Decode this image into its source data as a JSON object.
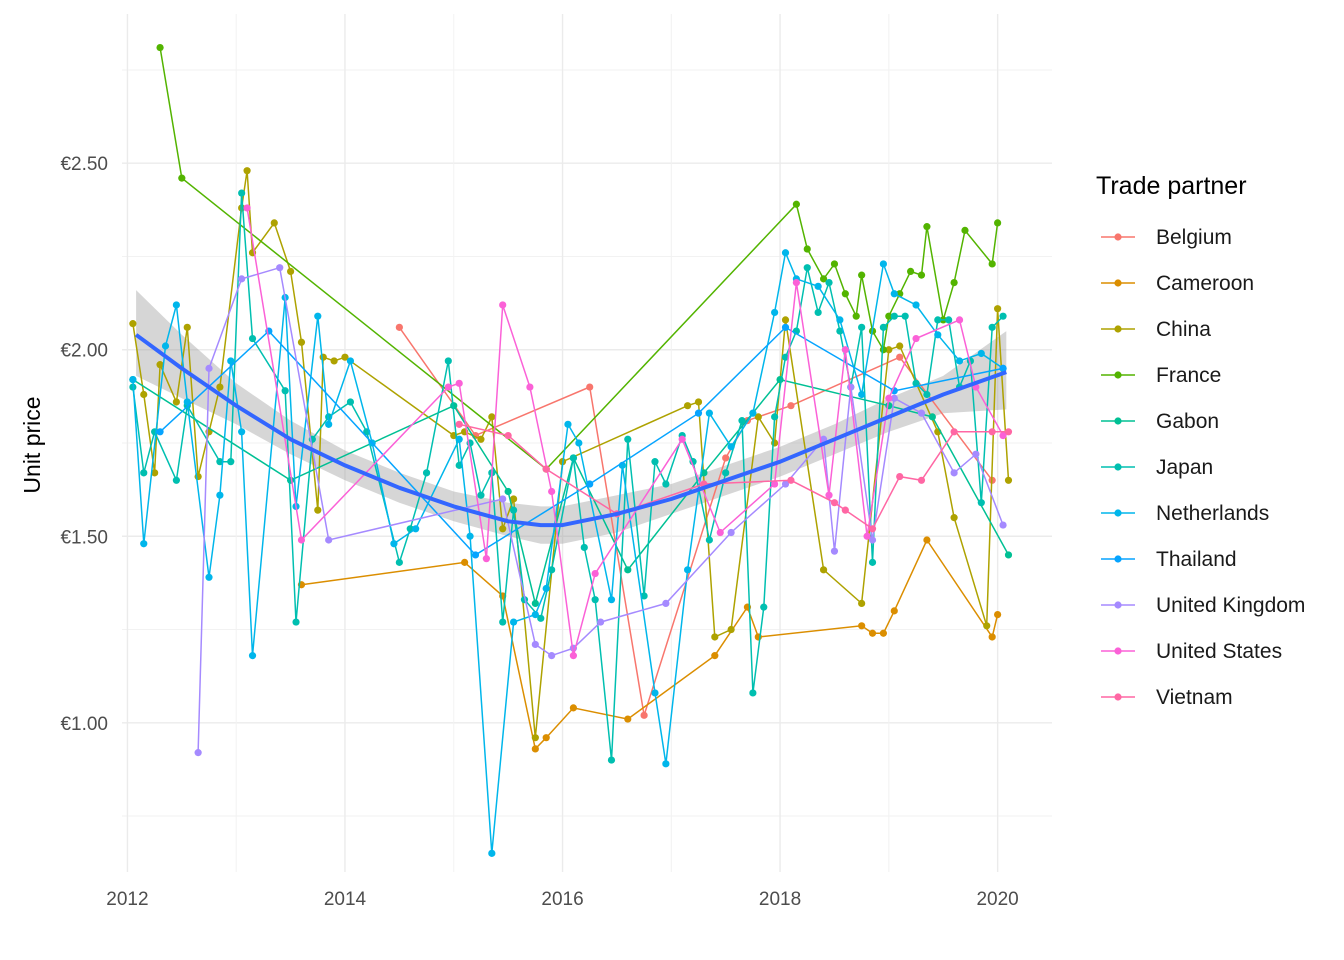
{
  "chart_data": {
    "type": "line",
    "title": "",
    "xlabel": "",
    "ylabel": "Unit price",
    "xlim": [
      2011.95,
      2020.5
    ],
    "ylim": [
      0.6,
      2.9
    ],
    "x_ticks": [
      2012,
      2014,
      2016,
      2018,
      2020
    ],
    "x_tick_labels": [
      "2012",
      "2014",
      "2016",
      "2018",
      "2020"
    ],
    "y_ticks": [
      1.0,
      1.5,
      2.0,
      2.5
    ],
    "y_tick_labels": [
      "€1.00",
      "€1.50",
      "€2.00",
      "€2.50"
    ],
    "grid": true,
    "legend": {
      "title": "Trade partner",
      "position": "right"
    },
    "series": [
      {
        "name": "Belgium",
        "color": "#F8766D",
        "x": [
          2014.5,
          2015.2,
          2016.25,
          2016.75,
          2017.5,
          2017.7,
          2018.1,
          2019.1,
          2019.95
        ],
        "y": [
          2.06,
          1.77,
          1.9,
          1.02,
          1.71,
          1.81,
          1.85,
          1.98,
          1.65
        ]
      },
      {
        "name": "Cameroon",
        "color": "#DB8E00",
        "x": [
          2013.6,
          2015.1,
          2015.45,
          2015.75,
          2015.85,
          2016.1,
          2016.6,
          2017.4,
          2017.7,
          2017.8,
          2018.75,
          2018.85,
          2018.95,
          2019.05,
          2019.35,
          2019.95,
          2020.0
        ],
        "y": [
          1.37,
          1.43,
          1.34,
          0.93,
          0.96,
          1.04,
          1.01,
          1.18,
          1.31,
          1.23,
          1.26,
          1.24,
          1.24,
          1.3,
          1.49,
          1.23,
          1.29
        ]
      },
      {
        "name": "China",
        "color": "#AEA200",
        "x": [
          2012.05,
          2012.15,
          2012.25,
          2012.3,
          2012.45,
          2012.55,
          2012.65,
          2012.75,
          2012.85,
          2013.05,
          2013.1,
          2013.15,
          2013.35,
          2013.5,
          2013.6,
          2013.75,
          2013.8,
          2013.9,
          2014.0,
          2015.0,
          2015.1,
          2015.25,
          2015.35,
          2015.45,
          2015.55,
          2015.75,
          2016.0,
          2017.15,
          2017.25,
          2017.4,
          2017.55,
          2017.8,
          2017.95,
          2018.05,
          2018.4,
          2018.75,
          2019.0,
          2019.1,
          2019.45,
          2019.6,
          2019.9,
          2020.0,
          2020.1
        ],
        "y": [
          2.07,
          1.88,
          1.67,
          1.96,
          1.86,
          2.06,
          1.66,
          1.78,
          1.9,
          2.38,
          2.48,
          2.26,
          2.34,
          2.21,
          2.02,
          1.57,
          1.98,
          1.97,
          1.98,
          1.77,
          1.78,
          1.76,
          1.82,
          1.52,
          1.6,
          0.96,
          1.7,
          1.85,
          1.86,
          1.23,
          1.25,
          1.82,
          1.75,
          2.08,
          1.41,
          1.32,
          2.0,
          2.01,
          1.78,
          1.55,
          1.26,
          2.11,
          1.65
        ]
      },
      {
        "name": "France",
        "color": "#53B400",
        "x": [
          2012.3,
          2012.5,
          2015.85,
          2018.15,
          2018.25,
          2018.4,
          2018.5,
          2018.6,
          2018.7,
          2018.75,
          2018.85,
          2018.95,
          2019.0,
          2019.1,
          2019.2,
          2019.3,
          2019.35,
          2019.5,
          2019.6,
          2019.7,
          2019.95,
          2020.0
        ],
        "y": [
          2.81,
          2.46,
          1.68,
          2.39,
          2.27,
          2.19,
          2.23,
          2.15,
          2.09,
          2.2,
          2.05,
          2.0,
          2.09,
          2.15,
          2.21,
          2.2,
          2.33,
          2.08,
          2.18,
          2.32,
          2.23,
          2.34
        ]
      },
      {
        "name": "Gabon",
        "color": "#00C094",
        "x": [
          2012.05,
          2013.5,
          2015.0,
          2015.5,
          2015.75,
          2016.1,
          2016.6,
          2017.3,
          2018.0,
          2019.0,
          2019.4,
          2020.1
        ],
        "y": [
          1.92,
          1.65,
          1.85,
          1.62,
          1.32,
          1.71,
          1.41,
          1.67,
          1.92,
          1.85,
          1.82,
          1.45
        ]
      },
      {
        "name": "Japan",
        "color": "#00BFB0",
        "x": [
          2012.05,
          2012.15,
          2012.25,
          2012.45,
          2012.55,
          2012.85,
          2012.95,
          2013.05,
          2013.15,
          2013.45,
          2013.55,
          2013.7,
          2013.85,
          2014.05,
          2014.2,
          2014.5,
          2014.6,
          2014.75,
          2014.95,
          2015.05,
          2015.15,
          2015.25,
          2015.35,
          2015.45,
          2015.55,
          2015.65,
          2015.8,
          2015.9,
          2016.1,
          2016.2,
          2016.3,
          2016.45,
          2016.6,
          2016.75,
          2016.85,
          2016.95,
          2017.1,
          2017.2,
          2017.35,
          2017.5,
          2017.65,
          2017.75,
          2017.85,
          2017.95,
          2018.05,
          2018.15,
          2018.25,
          2018.35,
          2018.45,
          2018.55,
          2018.65,
          2018.75,
          2018.85,
          2018.95,
          2019.05,
          2019.15,
          2019.25,
          2019.35,
          2019.45,
          2019.55,
          2019.65,
          2019.75,
          2019.85,
          2019.95,
          2020.05
        ],
        "y": [
          1.9,
          1.67,
          1.78,
          1.65,
          1.85,
          1.7,
          1.7,
          2.42,
          2.03,
          1.89,
          1.27,
          1.76,
          1.82,
          1.86,
          1.78,
          1.43,
          1.52,
          1.67,
          1.97,
          1.69,
          1.75,
          1.61,
          1.67,
          1.27,
          1.57,
          1.33,
          1.28,
          1.41,
          1.71,
          1.47,
          1.33,
          0.9,
          1.76,
          1.34,
          1.7,
          1.64,
          1.77,
          1.7,
          1.49,
          1.67,
          1.81,
          1.08,
          1.31,
          1.82,
          1.98,
          2.05,
          2.22,
          2.1,
          2.18,
          2.05,
          1.9,
          2.06,
          1.43,
          2.06,
          2.09,
          2.09,
          1.91,
          1.88,
          2.08,
          2.08,
          1.9,
          1.97,
          1.59,
          2.06,
          2.09
        ]
      },
      {
        "name": "Netherlands",
        "color": "#00B6EB",
        "x": [
          2012.05,
          2012.15,
          2012.35,
          2012.45,
          2012.55,
          2012.75,
          2012.85,
          2012.95,
          2013.05,
          2013.15,
          2013.45,
          2013.55,
          2013.75,
          2013.85,
          2014.05,
          2014.25,
          2014.45,
          2014.65,
          2015.05,
          2015.15,
          2015.35,
          2015.55,
          2015.75,
          2015.85,
          2016.05,
          2016.15,
          2016.45,
          2016.55,
          2016.85,
          2016.95,
          2017.15,
          2017.35,
          2017.55,
          2017.75,
          2017.95,
          2018.05,
          2018.15,
          2018.35,
          2018.55,
          2018.75,
          2018.95,
          2019.05,
          2019.25,
          2019.45,
          2019.65,
          2019.85,
          2020.05
        ],
        "y": [
          1.92,
          1.48,
          2.01,
          2.12,
          1.86,
          1.39,
          1.61,
          1.97,
          1.78,
          1.18,
          2.14,
          1.58,
          2.09,
          1.8,
          1.97,
          1.75,
          1.48,
          1.52,
          1.76,
          1.5,
          0.65,
          1.27,
          1.29,
          1.36,
          1.8,
          1.75,
          1.33,
          1.69,
          1.08,
          0.89,
          1.41,
          1.83,
          1.74,
          1.83,
          2.1,
          2.26,
          2.19,
          2.17,
          2.08,
          1.88,
          2.23,
          2.15,
          2.12,
          2.04,
          1.97,
          1.99,
          1.95
        ]
      },
      {
        "name": "Thailand",
        "color": "#06A4FF",
        "x": [
          2012.3,
          2013.3,
          2015.2,
          2016.25,
          2017.25,
          2018.05,
          2019.05,
          2020.05
        ],
        "y": [
          1.78,
          2.05,
          1.45,
          1.64,
          1.83,
          2.06,
          1.89,
          1.95
        ]
      },
      {
        "name": "United Kingdom",
        "color": "#A58AFF",
        "x": [
          2012.65,
          2012.75,
          2013.05,
          2013.4,
          2013.85,
          2015.45,
          2015.75,
          2015.9,
          2016.1,
          2016.35,
          2016.95,
          2017.55,
          2018.05,
          2018.4,
          2018.5,
          2018.65,
          2018.85,
          2019.05,
          2019.3,
          2019.6,
          2019.8,
          2020.05
        ],
        "y": [
          0.92,
          1.95,
          2.19,
          2.22,
          1.49,
          1.6,
          1.21,
          1.18,
          1.2,
          1.27,
          1.32,
          1.51,
          1.64,
          1.76,
          1.46,
          1.9,
          1.49,
          1.87,
          1.83,
          1.67,
          1.72,
          1.53
        ]
      },
      {
        "name": "United States",
        "color": "#FB61D7",
        "x": [
          2013.1,
          2013.6,
          2014.95,
          2015.05,
          2015.3,
          2015.45,
          2015.7,
          2015.9,
          2016.1,
          2016.3,
          2017.1,
          2017.45,
          2017.95,
          2018.15,
          2018.45,
          2018.6,
          2018.8,
          2019.0,
          2019.25,
          2019.65,
          2019.8,
          2020.05
        ],
        "y": [
          2.38,
          1.49,
          1.9,
          1.91,
          1.44,
          2.12,
          1.9,
          1.62,
          1.18,
          1.4,
          1.76,
          1.51,
          1.64,
          2.18,
          1.61,
          2.0,
          1.5,
          1.87,
          2.03,
          2.08,
          1.9,
          1.77
        ]
      },
      {
        "name": "Vietnam",
        "color": "#FF67A4",
        "x": [
          2015.05,
          2015.5,
          2015.85,
          2016.5,
          2017.3,
          2018.1,
          2018.5,
          2018.6,
          2018.85,
          2019.1,
          2019.3,
          2019.6,
          2019.95,
          2020.1
        ],
        "y": [
          1.8,
          1.77,
          1.68,
          1.56,
          1.64,
          1.65,
          1.59,
          1.57,
          1.52,
          1.66,
          1.65,
          1.78,
          1.78,
          1.78
        ]
      }
    ],
    "trend": {
      "method": "smooth",
      "color": "#3366FF",
      "band_color": "#999999",
      "x": [
        2012.08,
        2012.5,
        2013.0,
        2013.5,
        2014.0,
        2014.5,
        2015.0,
        2015.5,
        2015.8,
        2016.0,
        2016.5,
        2017.0,
        2017.5,
        2018.0,
        2018.5,
        2019.0,
        2019.5,
        2020.08
      ],
      "y": [
        2.04,
        1.95,
        1.85,
        1.76,
        1.69,
        1.63,
        1.58,
        1.54,
        1.53,
        1.53,
        1.56,
        1.6,
        1.65,
        1.7,
        1.76,
        1.82,
        1.88,
        1.94
      ],
      "lower": [
        1.93,
        1.87,
        1.8,
        1.72,
        1.65,
        1.59,
        1.54,
        1.5,
        1.48,
        1.48,
        1.51,
        1.56,
        1.61,
        1.66,
        1.72,
        1.78,
        1.83,
        1.84
      ],
      "upper": [
        2.16,
        2.04,
        1.91,
        1.81,
        1.73,
        1.67,
        1.62,
        1.59,
        1.58,
        1.58,
        1.61,
        1.64,
        1.69,
        1.74,
        1.8,
        1.87,
        1.93,
        2.05
      ]
    }
  }
}
